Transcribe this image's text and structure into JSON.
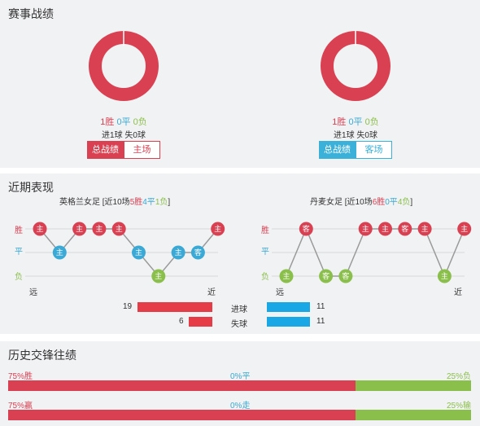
{
  "colors": {
    "win": "#d94152",
    "draw": "#3ba9d5",
    "loss": "#8bbf4b",
    "home_tab": "#d94152",
    "away_tab": "#3bb0d8",
    "goals_bar": "#e63c48",
    "opp_bar": "#1aa7e6"
  },
  "section1": {
    "title": "赛事战绩",
    "home": {
      "win": "1胜",
      "draw": "0平",
      "loss": "0负",
      "score": "进1球 失0球",
      "tab_total": "总战绩",
      "tab_venue": "主场",
      "win_fraction": 1.0
    },
    "away": {
      "win": "1胜",
      "draw": "0平",
      "loss": "0负",
      "score": "进1球 失0球",
      "tab_total": "总战绩",
      "tab_venue": "客场",
      "win_fraction": 1.0
    }
  },
  "section2": {
    "title": "近期表现",
    "row_win": "胜",
    "row_draw": "平",
    "row_loss": "负",
    "far": "远",
    "near": "近",
    "left": {
      "team": "英格兰女足",
      "summary_prefix": "[近10场",
      "wins": "5胜",
      "draws": "4平",
      "losses": "1负",
      "summary_suffix": "]",
      "results": [
        "W",
        "D",
        "W",
        "W",
        "W",
        "D",
        "L",
        "D",
        "D",
        "W"
      ],
      "venues": [
        "主",
        "主",
        "主",
        "主",
        "主",
        "主",
        "主",
        "主",
        "客",
        "主"
      ]
    },
    "right": {
      "team": "丹麦女足",
      "summary_prefix": "[近10场",
      "wins": "6胜",
      "draws": "0平",
      "losses": "4负",
      "summary_suffix": "]",
      "results": [
        "L",
        "W",
        "L",
        "L",
        "W",
        "W",
        "W",
        "W",
        "L",
        "W"
      ],
      "venues": [
        "主",
        "客",
        "客",
        "客",
        "主",
        "主",
        "客",
        "主",
        "主",
        "主"
      ]
    },
    "stats": {
      "goals_label": "进球",
      "conceded_label": "失球",
      "left_goals": "19",
      "left_conceded": "6",
      "right_goals": "11",
      "right_conceded": "11",
      "left_goals_value": 19,
      "left_conceded_value": 6,
      "right_goals_value": 11,
      "right_conceded_value": 11
    }
  },
  "section3": {
    "title": "历史交锋往绩",
    "row1": {
      "left": "75%胜",
      "mid": "0%平",
      "right": "25%负",
      "left_pct": 75,
      "mid_pct": 0,
      "right_pct": 25
    },
    "row2": {
      "left": "75%赢",
      "mid": "0%走",
      "right": "25%输",
      "left_pct": 75,
      "mid_pct": 0,
      "right_pct": 25
    }
  }
}
